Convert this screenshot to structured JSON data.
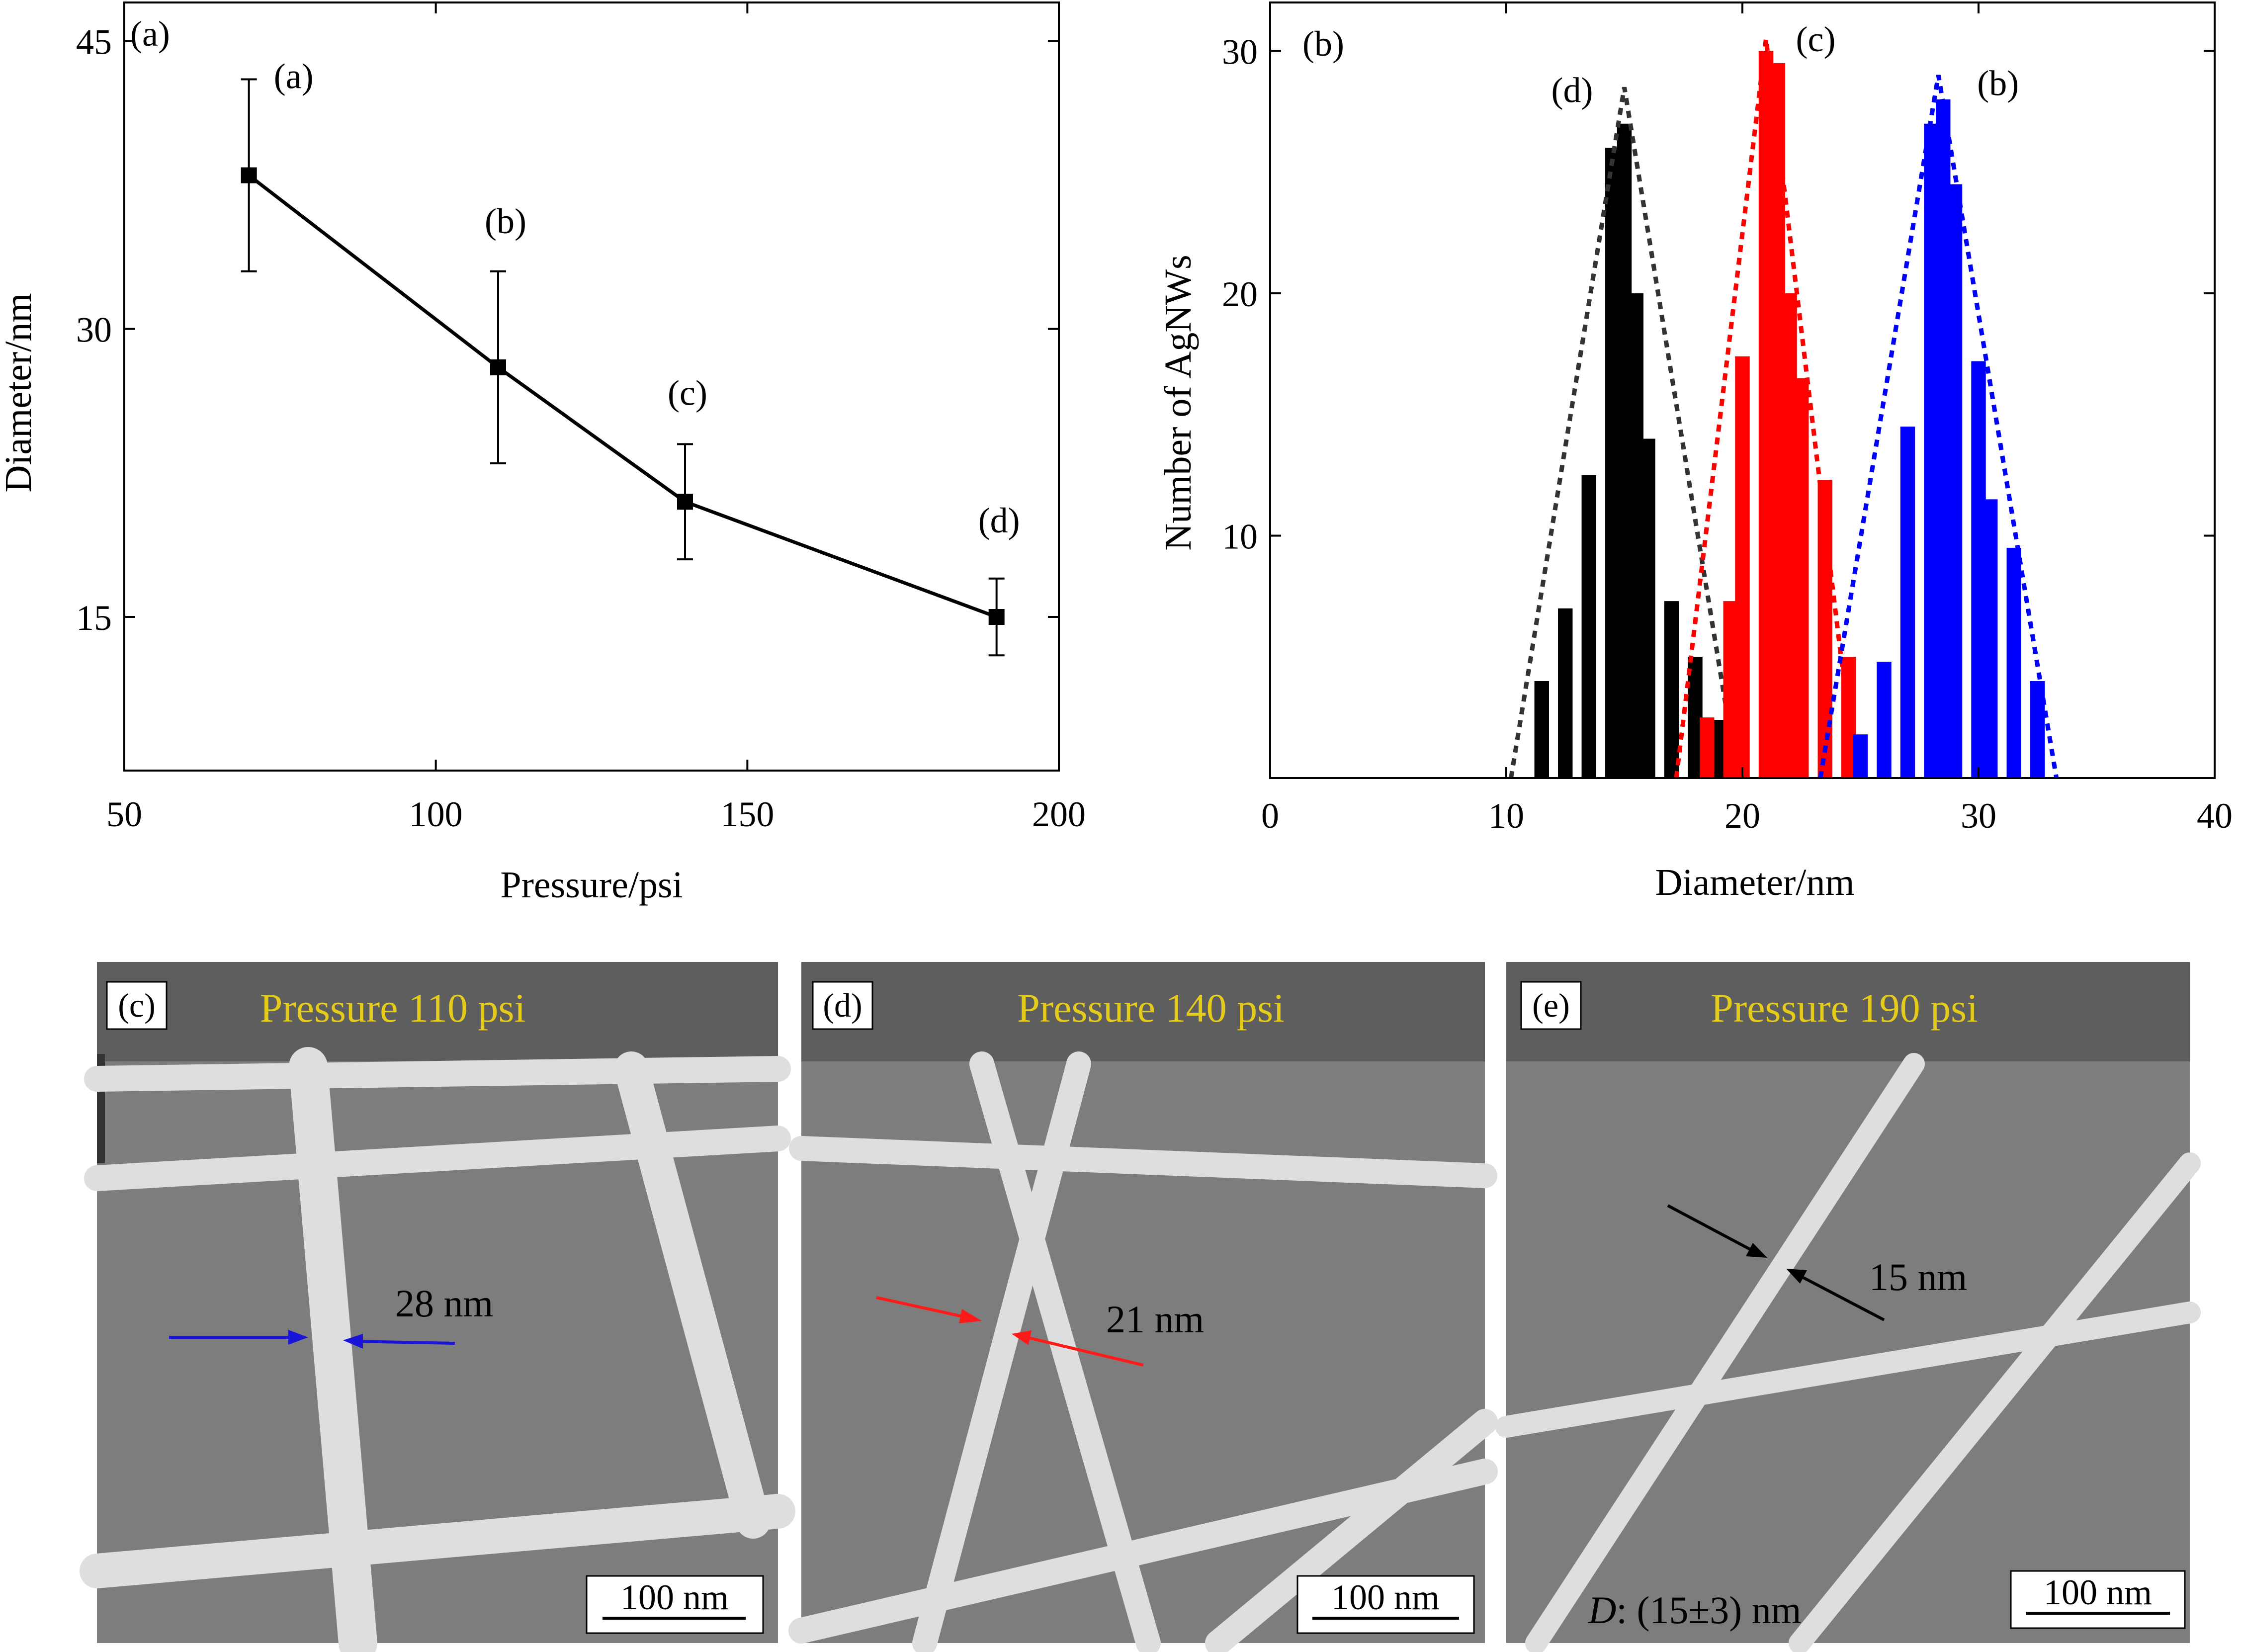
{
  "chart_data": [
    {
      "type": "line",
      "panel": "(a)",
      "xlabel": "Pressure/psi",
      "ylabel": "Diameter/nm",
      "xlim": [
        50,
        200
      ],
      "ylim": [
        7,
        47
      ],
      "xticks": [
        50,
        100,
        150,
        200
      ],
      "yticks": [
        15,
        30,
        45
      ],
      "x": [
        70,
        110,
        140,
        190
      ],
      "y": [
        38,
        28,
        21,
        15
      ],
      "error": [
        5,
        5,
        3,
        2
      ],
      "point_labels": [
        "(a)",
        "(b)",
        "(c)",
        "(d)"
      ],
      "grid": false,
      "color": "#000000"
    },
    {
      "type": "bar",
      "panel": "(b)",
      "xlabel": "Diameter/nm",
      "ylabel": "Number of AgNWs",
      "xlim": [
        0,
        40
      ],
      "ylim": [
        0,
        32
      ],
      "xticks": [
        0,
        10,
        20,
        30,
        40
      ],
      "yticks": [
        10,
        20,
        30
      ],
      "grid": false,
      "series": [
        {
          "label": "(d)",
          "color": "#000000",
          "x": [
            11.5,
            12.5,
            13.5,
            14.5,
            15.0,
            15.5,
            16.0,
            17.0,
            18.0,
            19.0
          ],
          "values": [
            4.0,
            7.0,
            12.5,
            26.0,
            27.0,
            20.0,
            14.0,
            7.3,
            5.0,
            2.4
          ],
          "fit_center": 15.0,
          "fit_peak": 28.5,
          "fit_halfwidth": 4.8
        },
        {
          "label": "(c)",
          "color": "#ff0000",
          "x": [
            18.5,
            19.5,
            20.0,
            21.0,
            21.5,
            22.0,
            22.5,
            23.5,
            24.5
          ],
          "values": [
            2.5,
            7.3,
            17.4,
            30.0,
            29.5,
            20.0,
            16.5,
            12.3,
            5.0
          ],
          "fit_center": 21.0,
          "fit_peak": 30.5,
          "fit_halfwidth": 3.8
        },
        {
          "label": "(b)",
          "color": "#0000ff",
          "x": [
            25.0,
            26.0,
            27.0,
            28.0,
            28.5,
            29.0,
            30.0,
            30.5,
            31.5,
            32.5
          ],
          "values": [
            1.8,
            4.8,
            14.5,
            27.0,
            28.0,
            24.5,
            17.2,
            11.5,
            9.5,
            4.0
          ],
          "fit_center": 28.3,
          "fit_peak": 29.0,
          "fit_halfwidth": 5.0
        }
      ]
    }
  ],
  "panels": {
    "a_label": "(a)",
    "b_label": "(b)"
  },
  "sem": [
    {
      "tag": "(c)",
      "title": "Pressure 110 psi",
      "measure": "28 nm",
      "arrow_color": "#1a14d8",
      "scale_bar": "100 nm"
    },
    {
      "tag": "(d)",
      "title": "Pressure 140 psi",
      "measure": "21 nm",
      "arrow_color": "#ff1a1a",
      "scale_bar": "100 nm"
    },
    {
      "tag": "(e)",
      "title": "Pressure 190 psi",
      "measure": "15 nm",
      "arrow_color": "#000000",
      "scale_bar": "100 nm",
      "note_symbol": "D",
      "note_value": ": (15±3) nm"
    }
  ]
}
